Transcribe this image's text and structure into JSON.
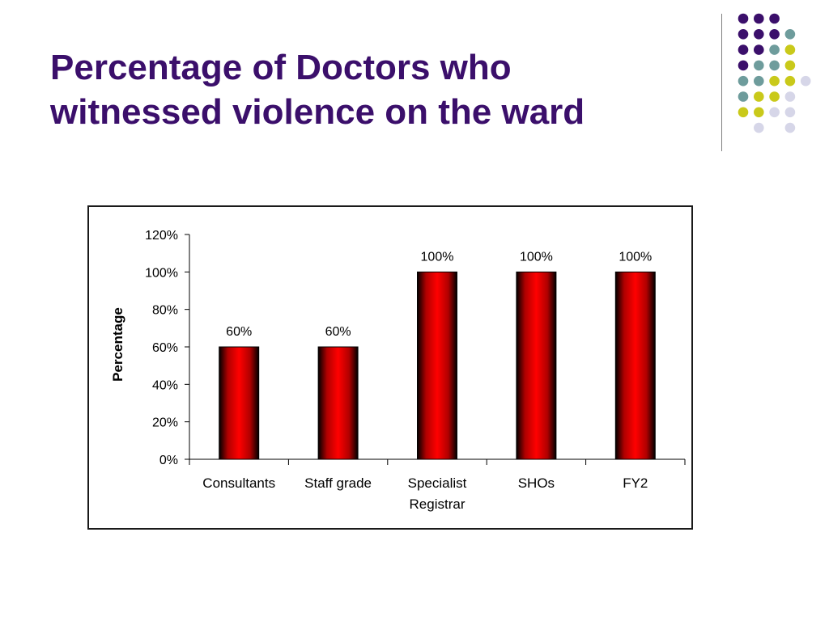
{
  "slide": {
    "title_lines": [
      "Percentage of Doctors who",
      "witnessed violence on the ward"
    ]
  },
  "decoration": {
    "dot_colors": {
      "purple": "#3b0f6b",
      "teal": "#6e9c9c",
      "olive": "#c9c91a",
      "lavender": "#d6d6e8"
    },
    "dot_grid": [
      [
        "purple",
        "purple",
        "purple",
        null,
        null
      ],
      [
        "purple",
        "purple",
        "purple",
        "teal",
        null
      ],
      [
        "purple",
        "purple",
        "teal",
        "olive",
        null
      ],
      [
        "purple",
        "teal",
        "teal",
        "olive",
        null
      ],
      [
        "teal",
        "teal",
        "olive",
        "olive",
        "lavender"
      ],
      [
        "teal",
        "olive",
        "olive",
        "lavender",
        null
      ],
      [
        "olive",
        "olive",
        "lavender",
        "lavender",
        null
      ],
      [
        null,
        "lavender",
        null,
        "lavender",
        null
      ]
    ]
  },
  "chart_data": {
    "type": "bar",
    "title": "",
    "xlabel": "",
    "ylabel": "Percentage",
    "categories": [
      [
        "Consultants"
      ],
      [
        "Staff grade"
      ],
      [
        "Specialist",
        "Registrar"
      ],
      [
        "SHOs"
      ],
      [
        "FY2"
      ]
    ],
    "values": [
      60,
      60,
      100,
      100,
      100
    ],
    "data_labels": [
      "60%",
      "60%",
      "100%",
      "100%",
      "100%"
    ],
    "ylim": [
      0,
      120
    ],
    "yticks": [
      0,
      20,
      40,
      60,
      80,
      100,
      120
    ],
    "ytick_labels": [
      "0%",
      "20%",
      "40%",
      "60%",
      "80%",
      "100%",
      "120%"
    ],
    "grid": false,
    "legend": "none",
    "bar_color": "#ff0000",
    "bar_edge_color": "#000000"
  }
}
